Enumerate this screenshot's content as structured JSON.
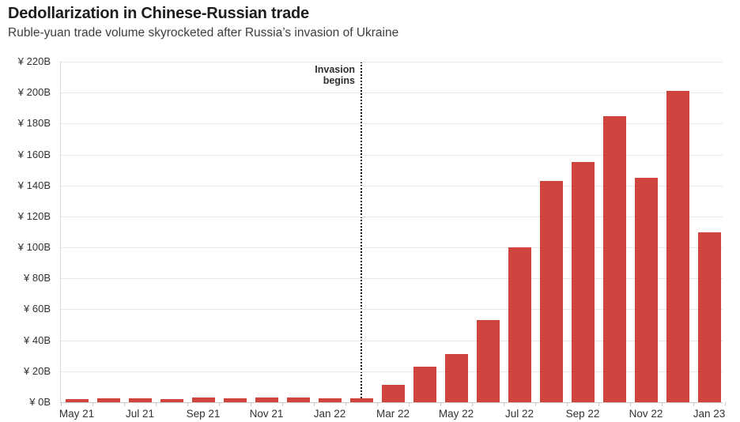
{
  "header": {
    "title": "Dedollarization in Chinese-Russian trade",
    "subtitle": "Ruble-yuan trade volume skyrocketed after Russia’s invasion of Ukraine"
  },
  "annotation": {
    "line1": "Invasion",
    "line2": "begins"
  },
  "colors": {
    "bar": "#cf443e",
    "gridline": "#e6e6e6",
    "axis": "#c9c9c9",
    "invasion_line": "#141414",
    "title_text": "#1d1d1d",
    "subtitle_text": "#3d3d3d",
    "tick_label_text": "#333333"
  },
  "chart_data": {
    "type": "bar",
    "title": "Dedollarization in Chinese-Russian trade",
    "subtitle": "Ruble-yuan trade volume skyrocketed after Russia’s invasion of Ukraine",
    "unit": "billions of yuan",
    "categories": [
      "May 21",
      "Jun 21",
      "Jul 21",
      "Aug 21",
      "Sep 21",
      "Oct 21",
      "Nov 21",
      "Dec 21",
      "Jan 22",
      "Feb 22",
      "Mar 22",
      "Apr 22",
      "May 22",
      "Jun 22",
      "Jul 22",
      "Aug 22",
      "Sep 22",
      "Oct 22",
      "Nov 22",
      "Dec 22",
      "Jan 23"
    ],
    "values": [
      2,
      2.5,
      2.5,
      2,
      3,
      2.5,
      3,
      3,
      2.5,
      2.5,
      11,
      23,
      31,
      53,
      100,
      143,
      155,
      185,
      145,
      201,
      110
    ],
    "x_tick_labels": [
      "May 21",
      "Jul 21",
      "Sep 21",
      "Nov 21",
      "Jan 22",
      "Mar 22",
      "May 22",
      "Jul 22",
      "Sep 22",
      "Nov 22",
      "Jan 23"
    ],
    "y_tick_labels": [
      "¥ 0B",
      "¥ 20B",
      "¥ 40B",
      "¥ 60B",
      "¥ 80B",
      "¥ 100B",
      "¥ 120B",
      "¥ 140B",
      "¥ 160B",
      "¥ 180B",
      "¥ 200B",
      "¥ 220B"
    ],
    "ylim": [
      0,
      220
    ],
    "y_step": 20,
    "grid": "horizontal",
    "legend": "none",
    "bar_color": "#cf443e",
    "annotation": {
      "text": "Invasion begins",
      "at_category": "Feb 22",
      "style": "vertical dotted line"
    }
  }
}
